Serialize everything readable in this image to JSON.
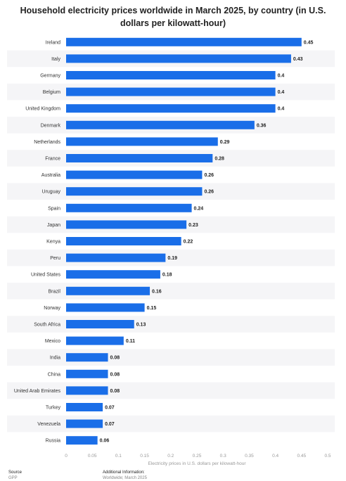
{
  "chart_data": {
    "type": "bar",
    "orientation": "horizontal",
    "title": "Household electricity prices worldwide in March 2025, by country (in U.S. dollars per kilowatt-hour)",
    "categories": [
      "Ireland",
      "Italy",
      "Germany",
      "Belgium",
      "United Kingdom",
      "Denmark",
      "Netherlands",
      "France",
      "Australia",
      "Uruguay",
      "Spain",
      "Japan",
      "Kenya",
      "Peru",
      "United States",
      "Brazil",
      "Norway",
      "South Africa",
      "Mexico",
      "India",
      "China",
      "United Arab Emirates",
      "Turkey",
      "Venezuela",
      "Russia"
    ],
    "values": [
      0.45,
      0.43,
      0.4,
      0.4,
      0.4,
      0.36,
      0.29,
      0.28,
      0.26,
      0.26,
      0.24,
      0.23,
      0.22,
      0.19,
      0.18,
      0.16,
      0.15,
      0.13,
      0.11,
      0.08,
      0.08,
      0.08,
      0.07,
      0.07,
      0.06
    ],
    "value_labels": [
      "0.45",
      "0.43",
      "0.4",
      "0.4",
      "0.4",
      "0.36",
      "0.29",
      "0.28",
      "0.26",
      "0.26",
      "0.24",
      "0.23",
      "0.22",
      "0.19",
      "0.18",
      "0.16",
      "0.15",
      "0.13",
      "0.11",
      "0.08",
      "0.08",
      "0.08",
      "0.07",
      "0.07",
      "0.06"
    ],
    "xlabel": "Electricity prices in U.S. dollars per kilowatt-hour",
    "xlim": [
      0,
      0.5
    ],
    "xticks": [
      "0",
      "0.05",
      "0.1",
      "0.15",
      "0.2",
      "0.25",
      "0.3",
      "0.35",
      "0.4",
      "0.45",
      "0.5"
    ],
    "grid": "alternating row bands",
    "bar_color": "#1a6ee8"
  },
  "footer": {
    "source_label": "Source",
    "source_value": "GPP",
    "info_label": "Additional Information:",
    "info_value": "Worldwide; March 2025"
  }
}
